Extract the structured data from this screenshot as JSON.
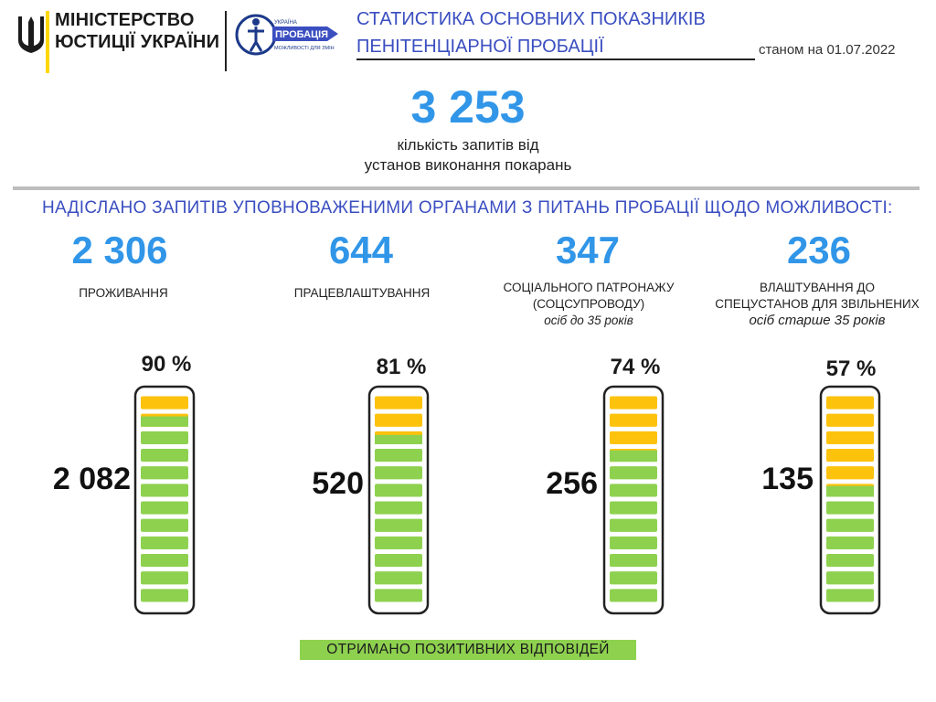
{
  "header": {
    "ministry_line1": "МІНІСТЕРСТВО",
    "ministry_line2": "ЮСТИЦІЇ УКРАЇНИ",
    "logo_text_small": "УКРАЇНА",
    "logo_text_main": "ПРОБАЦІЯ",
    "logo_text_sub": "МОЖЛИВОСТІ ДЛЯ ЗМІН",
    "title_line1": "СТАТИСТИКА ОСНОВНИХ ПОКАЗНИКІВ",
    "title_line2": "ПЕНІТЕНЦІАРНОЇ ПРОБАЦІЇ",
    "as_of": "станом на 01.07.2022"
  },
  "total": {
    "value": "3 253",
    "caption_line1": "кількість запитів від",
    "caption_line2": "установ виконання покарань"
  },
  "section_title": "НАДІСЛАНО ЗАПИТІВ УПОВНОВАЖЕНИМИ ОРГАНАМИ З ПИТАНЬ ПРОБАЦІЇ  ЩОДО МОЖЛИВОСТІ:",
  "legend": "ОТРИМАНО  ПОЗИТИВНИХ ВІДПОВІДЕЙ",
  "colors": {
    "accent_blue": "#3196e8",
    "title_blue": "#3a4ec0",
    "positive_green": "#8ed14f",
    "remainder_yellow": "#fdc20c"
  },
  "chart_data": {
    "type": "bar",
    "categories": [
      "ПРОЖИВАННЯ",
      "ПРАЦЕВЛАШТУВАННЯ",
      "СОЦІАЛЬНОГО ПАТРОНАЖУ (СОЦСУПРОВОДУ) осіб до 35 років",
      "ВЛАШТУВАННЯ ДО СПЕЦУСТАНОВ ДЛЯ ЗВІЛЬНЕНИХ осіб старше 35 років"
    ],
    "series": [
      {
        "name": "",
        "values": [
          2306,
          644,
          347,
          236
        ]
      },
      {
        "name": "ОТРИМАНО  ПОЗИТИВНИХ ВІДПОВІДЕЙ",
        "values": [
          2082,
          520,
          256,
          135
        ]
      }
    ],
    "percent_positive": [
      90,
      81,
      74,
      57
    ],
    "items": [
      {
        "requests": "2 306",
        "label_line1": "ПРОЖИВАННЯ",
        "label_line2": "",
        "note": "",
        "percent": "90 %",
        "positive": "2 082",
        "fraction": 0.9
      },
      {
        "requests": "644",
        "label_line1": "ПРАЦЕВЛАШТУВАННЯ",
        "label_line2": "",
        "note": "",
        "percent": "81 %",
        "positive": "520",
        "fraction": 0.81
      },
      {
        "requests": "347",
        "label_line1": "СОЦІАЛЬНОГО ПАТРОНАЖУ",
        "label_line2": "(СОЦСУПРОВОДУ)",
        "note": "осіб до 35 років",
        "percent": "74 %",
        "positive": "256",
        "fraction": 0.74
      },
      {
        "requests": "236",
        "label_line1": "ВЛАШТУВАННЯ ДО",
        "label_line2": "СПЕЦУСТАНОВ ДЛЯ ЗВІЛЬНЕНИХ",
        "note": "осіб старше 35 років",
        "percent": "57 %",
        "positive": "135",
        "fraction": 0.57
      }
    ]
  }
}
